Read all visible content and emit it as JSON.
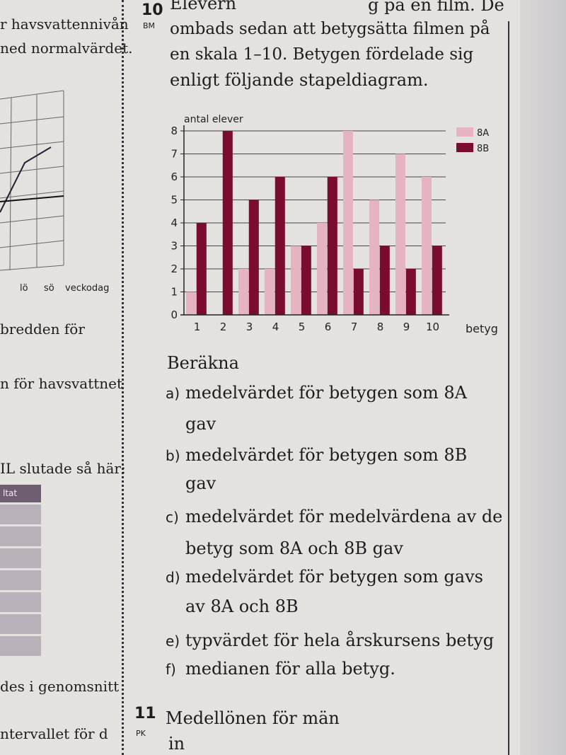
{
  "left_column": {
    "lines": [
      "r havsvattennivån",
      "ned normalvärdet.",
      "bredden för",
      "n för havsvattnet",
      "IL slutade så här:",
      "des i genomsnitt",
      "ntervallet för d"
    ],
    "mini_chart_labels": [
      "lö",
      "sö",
      "veckodag"
    ],
    "table_header": "ltat"
  },
  "exercise10": {
    "number": "10",
    "tag": "BM",
    "text_lines": [
      "Elevern",
      "g på en film. De",
      "ombads sedan att betygsätta filmen på",
      "en skala 1–10. Betygen fördelade sig",
      "enligt följande stapeldiagram."
    ],
    "prompt": "Beräkna",
    "questions": [
      {
        "label": "a)",
        "lines": [
          "medelvärdet för betygen som 8A",
          "gav"
        ]
      },
      {
        "label": "b)",
        "lines": [
          "medelvärdet för betygen som 8B",
          "gav"
        ]
      },
      {
        "label": "c)",
        "lines": [
          "medelvärdet för medelvärdena av de",
          "betyg som 8A och 8B gav"
        ]
      },
      {
        "label": "d)",
        "lines": [
          "medelvärdet för betygen som gavs",
          "av 8A och 8B"
        ]
      },
      {
        "label": "e)",
        "lines": [
          "typvärdet för hela årskursens betyg"
        ]
      },
      {
        "label": "f)",
        "lines": [
          "medianen för alla betyg."
        ]
      }
    ]
  },
  "exercise11": {
    "number": "11",
    "tag": "PK",
    "text": "Medellönen för män",
    "text2": "in"
  },
  "chart_data": {
    "type": "bar",
    "title": "",
    "xlabel": "betyg",
    "ylabel": "antal elever",
    "categories": [
      "1",
      "2",
      "3",
      "4",
      "5",
      "6",
      "7",
      "8",
      "9",
      "10"
    ],
    "yticks": [
      "0",
      "1",
      "2",
      "3",
      "4",
      "5",
      "6",
      "7",
      "8"
    ],
    "ylim": [
      0,
      8
    ],
    "grid": true,
    "legend": "top-right",
    "series": [
      {
        "name": "8A",
        "color": "#e6b3c1",
        "values": [
          1,
          0,
          2,
          2,
          3,
          4,
          8,
          5,
          7,
          6
        ]
      },
      {
        "name": "8B",
        "color": "#7a0c30",
        "values": [
          4,
          8,
          5,
          6,
          3,
          6,
          2,
          3,
          2,
          3
        ]
      }
    ]
  }
}
